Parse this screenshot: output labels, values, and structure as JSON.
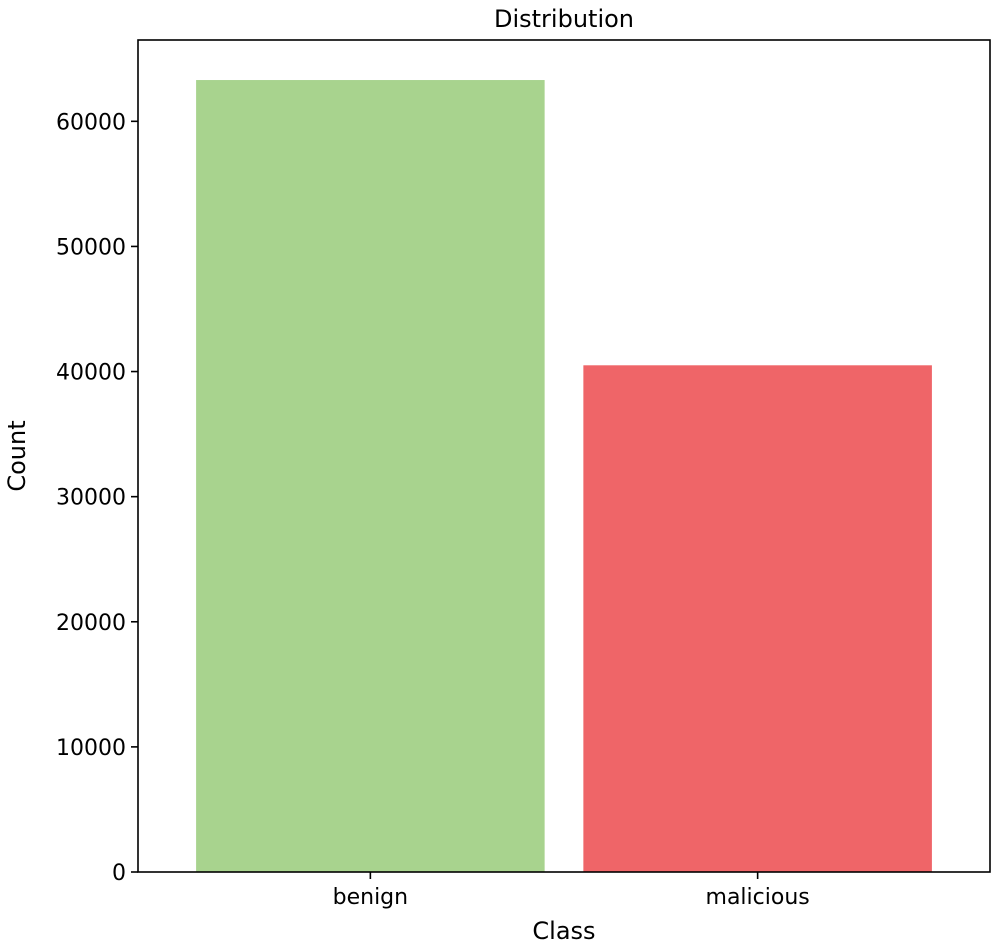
{
  "chart_data": {
    "type": "bar",
    "title": "Distribution",
    "xlabel": "Class",
    "ylabel": "Count",
    "categories": [
      "benign",
      "malicious"
    ],
    "values": [
      63300,
      40500
    ],
    "colors": [
      "#a8d38e",
      "#ef6568"
    ],
    "ylim": [
      0,
      66500
    ],
    "yticks": [
      0,
      10000,
      20000,
      30000,
      40000,
      50000,
      60000
    ],
    "grid": false,
    "legend": "none"
  }
}
